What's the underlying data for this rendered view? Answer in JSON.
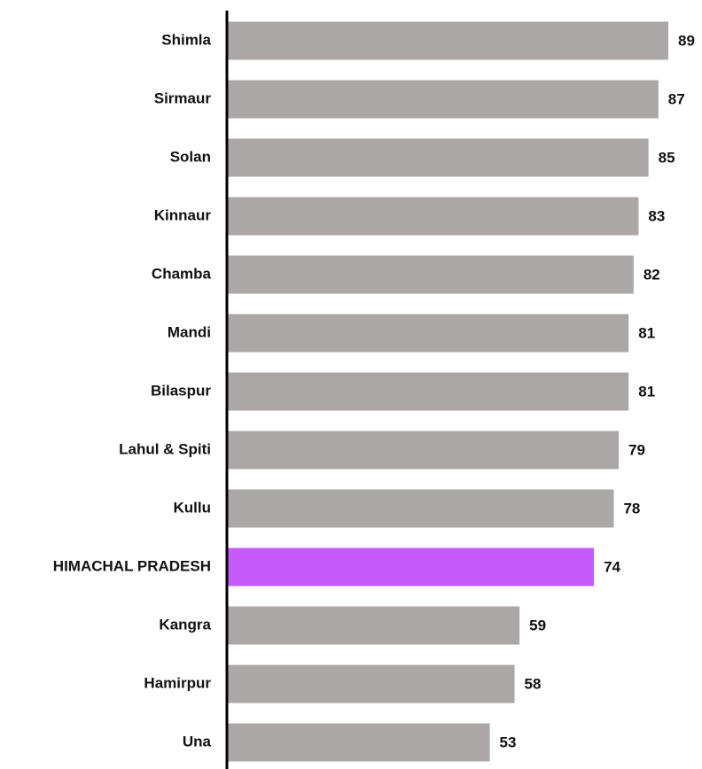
{
  "chart_data": {
    "type": "barh",
    "categories": [
      "Shimla",
      "Sirmaur",
      "Solan",
      "Kinnaur",
      "Chamba",
      "Mandi",
      "Bilaspur",
      "Lahul & Spiti",
      "Kullu",
      "HIMACHAL PRADESH",
      "Kangra",
      "Hamirpur",
      "Una"
    ],
    "values": [
      89,
      87,
      85,
      83,
      82,
      81,
      81,
      79,
      78,
      74,
      59,
      58,
      53
    ],
    "colors": [
      "#aba7a6",
      "#aba7a6",
      "#aba7a6",
      "#aba7a6",
      "#aba7a6",
      "#aba7a6",
      "#aba7a6",
      "#aba7a6",
      "#aba7a6",
      "#c45bfa",
      "#aba7a6",
      "#aba7a6",
      "#aba7a6"
    ]
  }
}
